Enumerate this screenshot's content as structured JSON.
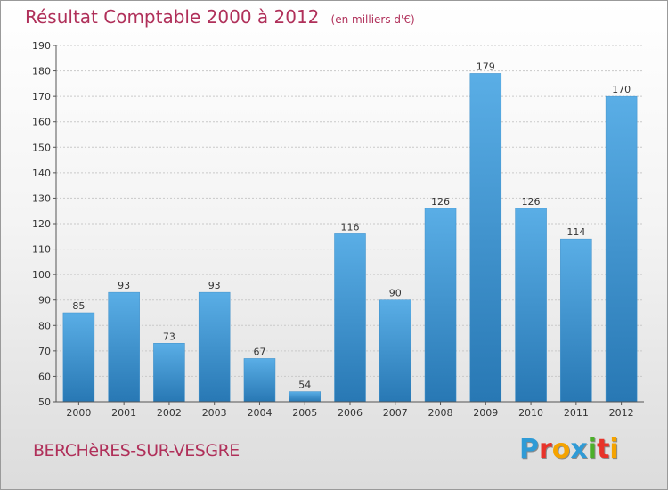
{
  "title": "Résultat Comptable 2000 à 2012",
  "subtitle": "(en milliers d'€)",
  "commune": "BERCHèRES-SUR-VESGRE",
  "logo": {
    "text": "Proxiti",
    "letters": [
      {
        "char": "P",
        "color": "#2f9bd6"
      },
      {
        "char": "r",
        "color": "#e8332a"
      },
      {
        "char": "o",
        "color": "#f5a300"
      },
      {
        "char": "x",
        "color": "#2f9bd6"
      },
      {
        "char": "i",
        "color": "#4caf2a"
      },
      {
        "char": "t",
        "color": "#e8332a"
      },
      {
        "char": "i",
        "color": "#f5a300"
      }
    ]
  },
  "colors": {
    "bar_top": "#5aaee6",
    "bar_bottom": "#2878b4",
    "title": "#b0305a",
    "grid": "#c9c9c9",
    "axis": "#555555"
  },
  "chart_data": {
    "type": "bar",
    "title": "Résultat Comptable 2000 à 2012",
    "ylabel": "en milliers d'€",
    "xlabel": "",
    "categories": [
      "2000",
      "2001",
      "2002",
      "2003",
      "2004",
      "2005",
      "2006",
      "2007",
      "2008",
      "2009",
      "2010",
      "2011",
      "2012"
    ],
    "values": [
      85,
      93,
      73,
      93,
      67,
      54,
      116,
      90,
      126,
      179,
      126,
      114,
      170
    ],
    "ylim": [
      50,
      190
    ],
    "yticks": [
      50,
      60,
      70,
      80,
      90,
      100,
      110,
      120,
      130,
      140,
      150,
      160,
      170,
      180,
      190
    ],
    "grid": true
  }
}
